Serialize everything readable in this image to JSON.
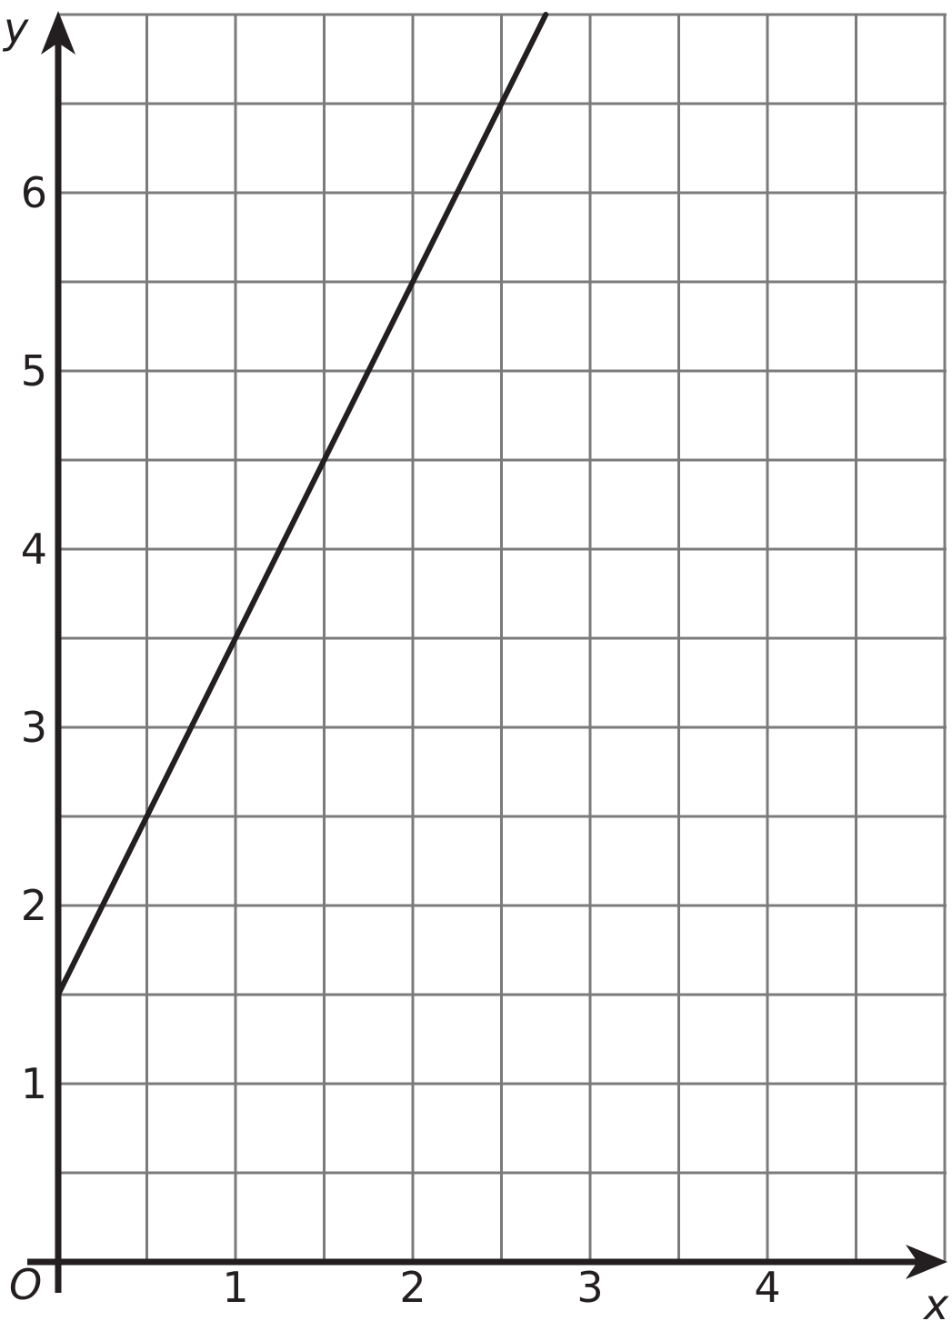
{
  "chart_data": {
    "type": "line",
    "title": "",
    "xlabel": "x",
    "ylabel": "y",
    "origin_label": "O",
    "x_ticks": [
      1,
      2,
      3,
      4
    ],
    "y_ticks": [
      1,
      2,
      3,
      4,
      5,
      6
    ],
    "xlim": [
      0,
      5
    ],
    "ylim": [
      0,
      7.25
    ],
    "grid_step": 0.5,
    "grid": "on",
    "legend": "none",
    "series": [
      {
        "name": "plotted-line",
        "slope": 2,
        "y_intercept": 1.5,
        "segment": {
          "x1": 0,
          "y1": 1.5,
          "x2": 2.75,
          "y2": 7
        },
        "points_on_line": [
          [
            0,
            1.5
          ],
          [
            0.5,
            2.5
          ],
          [
            1,
            3.5
          ],
          [
            1.5,
            4.5
          ],
          [
            2,
            5.5
          ],
          [
            2.5,
            6.5
          ]
        ]
      }
    ],
    "colors": {
      "line": "#231f20",
      "axis": "#231f20",
      "grid": "#7b7b7b",
      "background": "#ffffff"
    }
  }
}
